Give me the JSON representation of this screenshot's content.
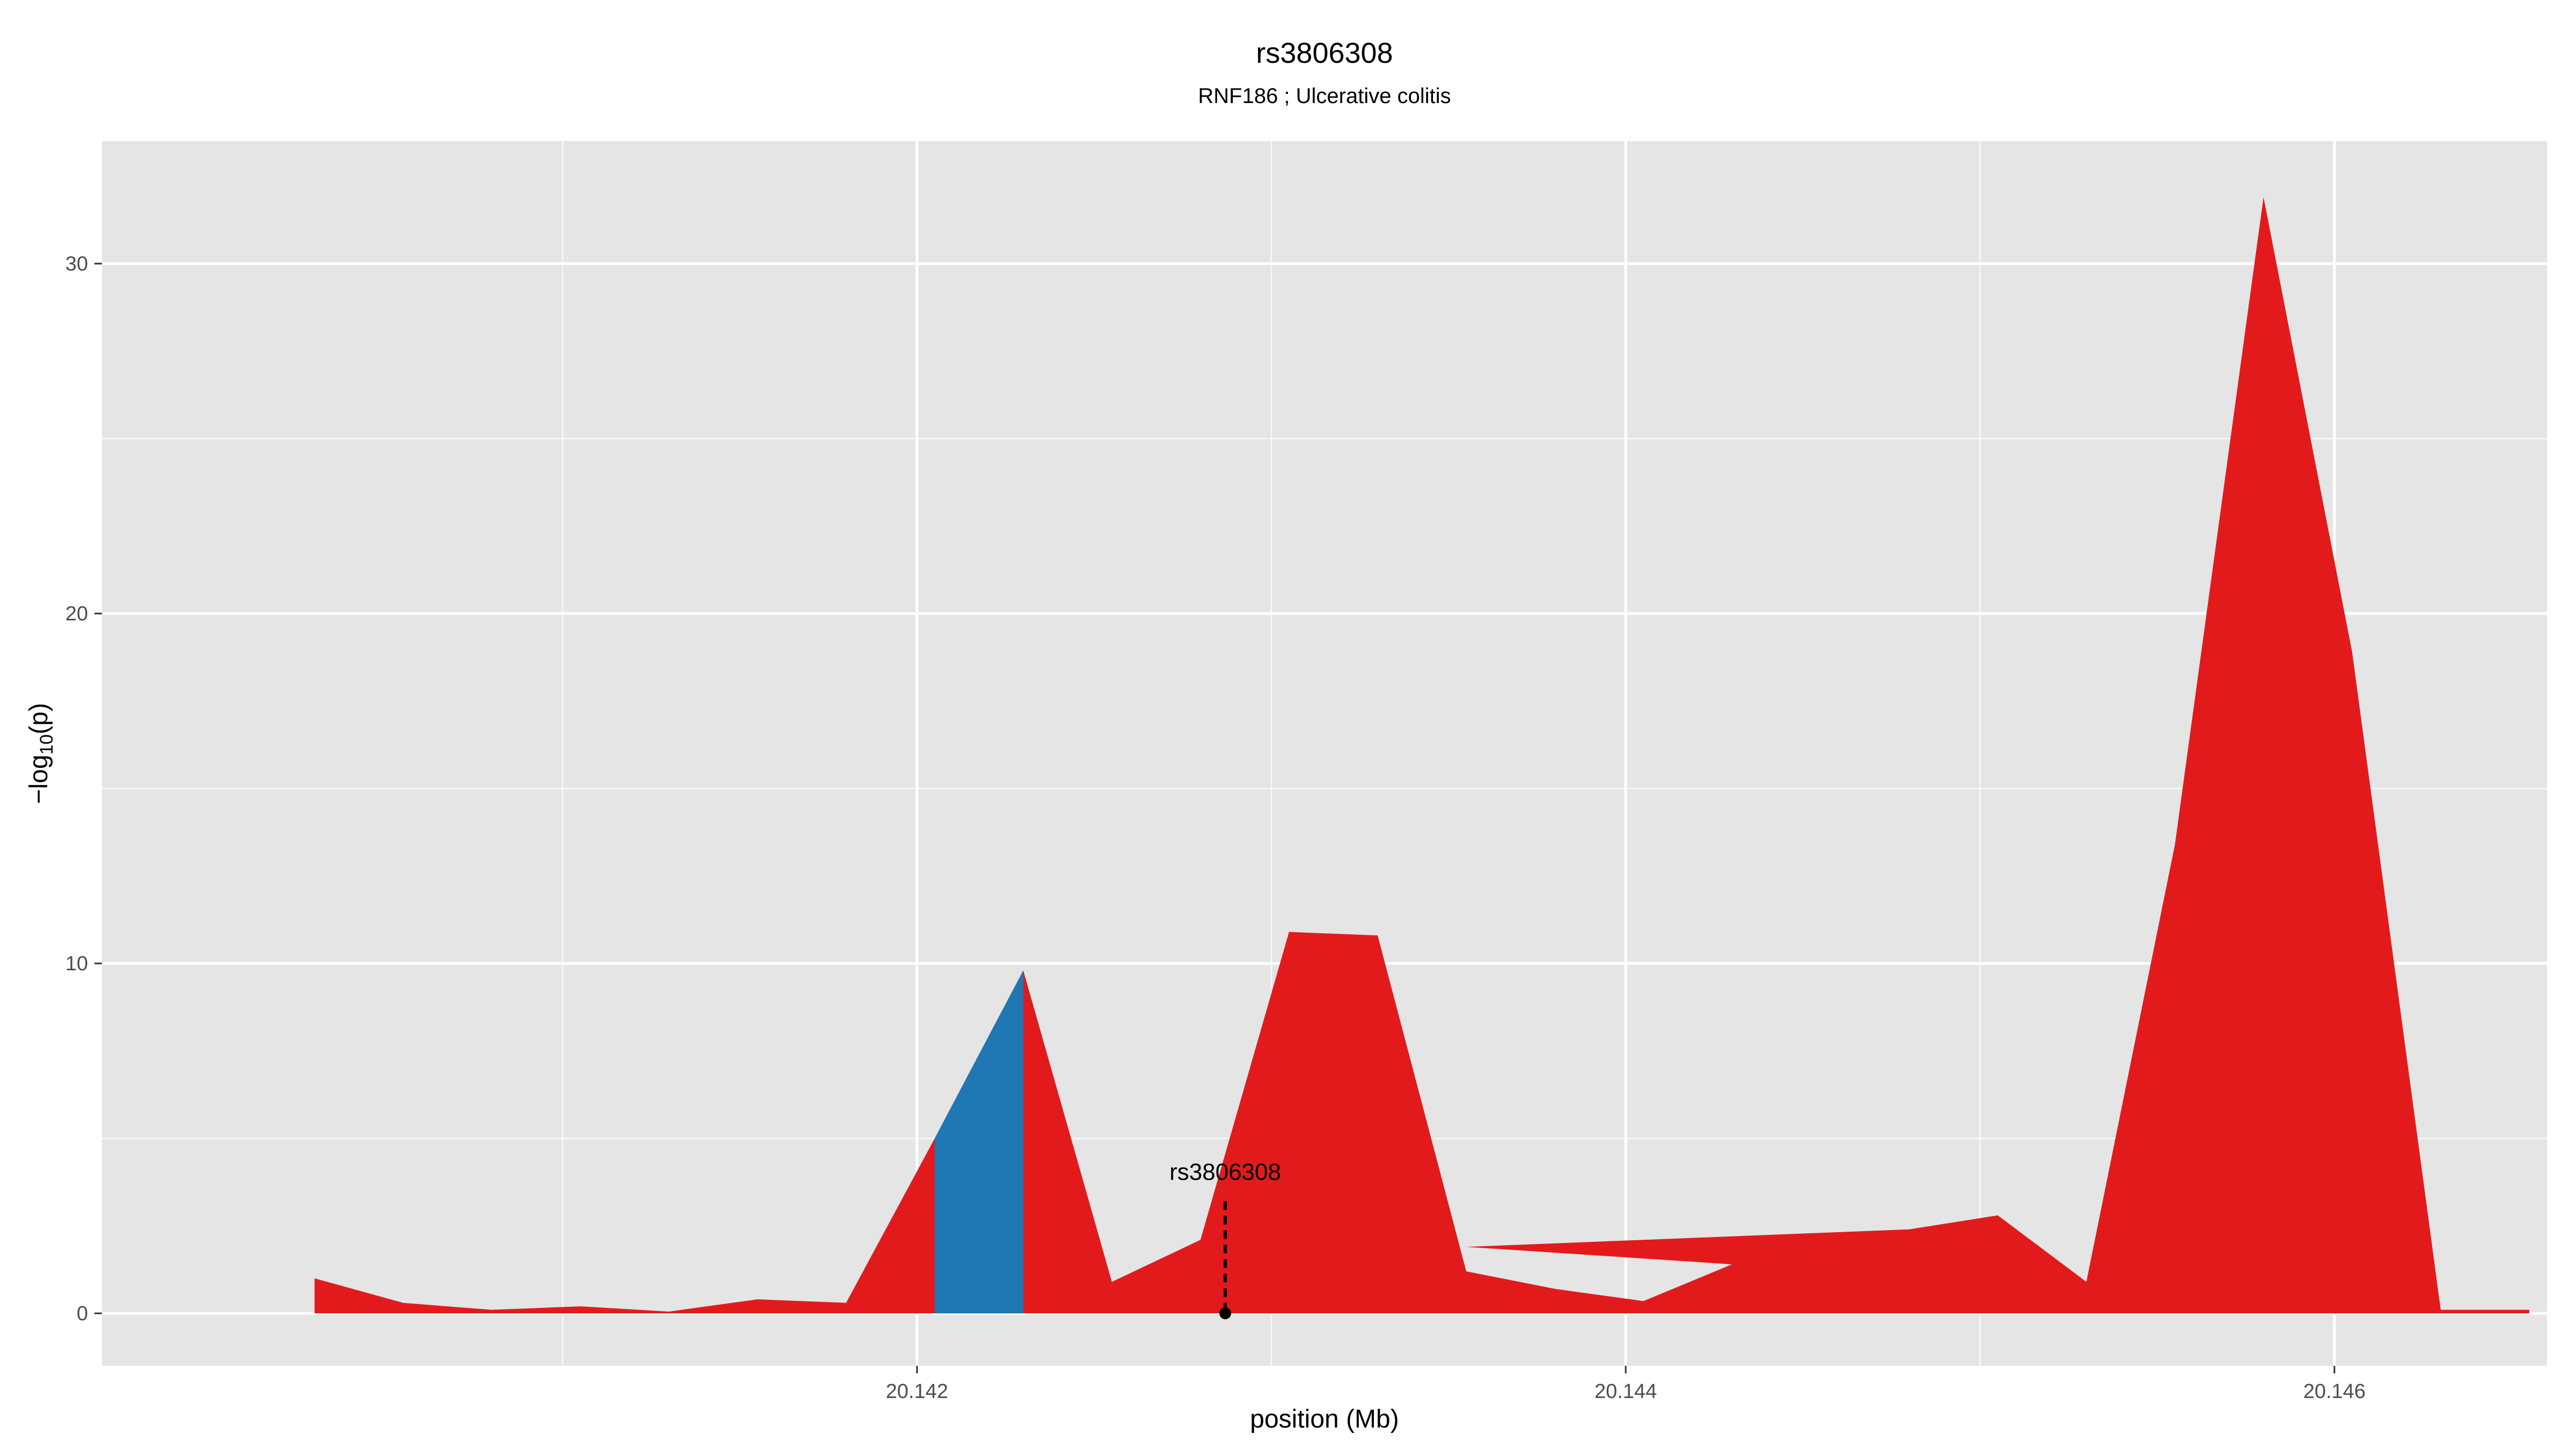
{
  "chart_data": {
    "type": "area",
    "title": "rs3806308",
    "subtitle": "RNF186 ; Ulcerative colitis",
    "xlabel": "position (Mb)",
    "ylabel_main": "−log",
    "ylabel_sub": "10",
    "ylabel_tail": "(p)",
    "xlim": [
      20.1397,
      20.1466
    ],
    "ylim": [
      -1.5,
      33.5
    ],
    "x_ticks": [
      20.142,
      20.144,
      20.146
    ],
    "x_tick_labels": [
      "20.142",
      "20.144",
      "20.146"
    ],
    "x_minor_ticks": [
      20.141,
      20.143,
      20.145
    ],
    "y_ticks": [
      0,
      10,
      20,
      30
    ],
    "y_tick_labels": [
      "0",
      "10",
      "20",
      "30"
    ],
    "y_minor_ticks": [
      5,
      15,
      25
    ],
    "grid": true,
    "colors": {
      "panel": "#e5e5e5",
      "grid": "#ffffff",
      "main": "#e31a1c",
      "highlight": "#1f78b4"
    },
    "series": [
      {
        "color": "#e31a1c",
        "x": [
          20.1403,
          20.14055,
          20.1408,
          20.14105,
          20.1413,
          20.14155,
          20.1418,
          20.14205,
          20.1423,
          20.14255,
          20.1428,
          20.14305,
          20.1433,
          20.14355,
          20.1438,
          20.14405,
          20.1443,
          20.14355,
          20.1448,
          20.14505,
          20.1453,
          20.14555,
          20.1458,
          20.14605,
          20.1463,
          20.14655
        ],
        "y": [
          1.0,
          0.3,
          0.1,
          0.2,
          0.05,
          0.4,
          0.3,
          5.0,
          9.8,
          0.9,
          2.1,
          10.9,
          10.8,
          1.2,
          0.7,
          0.35,
          1.4,
          1.9,
          2.4,
          2.8,
          0.9,
          13.4,
          31.9,
          18.9,
          0.1,
          0.1
        ]
      },
      {
        "color": "#1f78b4",
        "x": [
          20.14205,
          20.1423
        ],
        "y": [
          5.0,
          9.8
        ]
      }
    ],
    "annotation": {
      "label": "rs3806308",
      "x": 20.14287,
      "y": 0,
      "line_top": 3.2
    }
  }
}
